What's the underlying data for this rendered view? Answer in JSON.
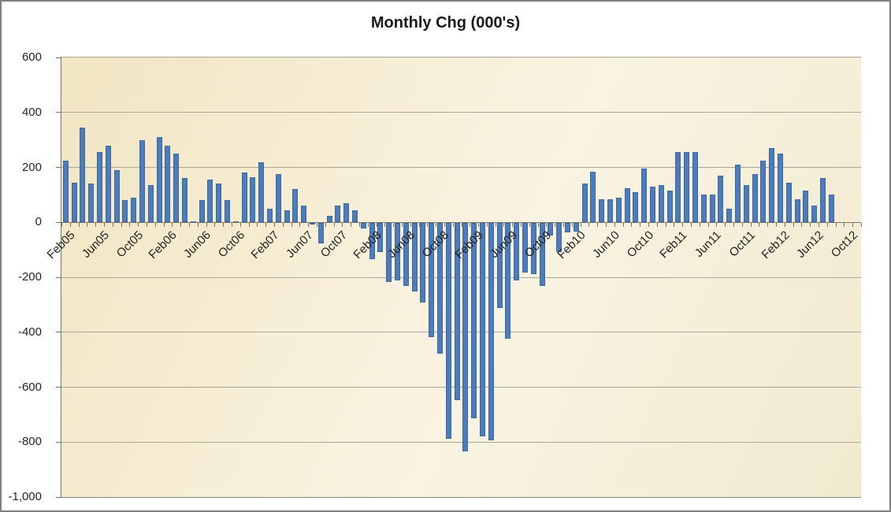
{
  "title": "Monthly Chg (000's)",
  "colors": {
    "bar_fill": "#4d7cb8",
    "bar_border": "#3a689f",
    "plot_bg_light": "#f9f3e2",
    "plot_bg_dark": "#f1e5c2",
    "gridline": "#aaa79a",
    "axis": "#76746a",
    "label_text": "#262626",
    "title_text": "#1a1a1a",
    "outer_border": "#7f7f7f"
  },
  "chart_data": {
    "type": "bar",
    "title": "Monthly Chg (000's)",
    "xlabel": "",
    "ylabel": "",
    "ylim": [
      -1000,
      600
    ],
    "ytick_interval": 200,
    "ytick_labels": [
      "600",
      "400",
      "200",
      "0",
      "-200",
      "-400",
      "-600",
      "-800",
      "-1,000"
    ],
    "xtick_label_every": 4,
    "grid": true,
    "legend": "none",
    "categories": [
      "Feb05",
      "Mar05",
      "Apr05",
      "May05",
      "Jun05",
      "Jul05",
      "Aug05",
      "Sep05",
      "Oct05",
      "Nov05",
      "Dec05",
      "Jan06",
      "Feb06",
      "Mar06",
      "Apr06",
      "May06",
      "Jun06",
      "Jul06",
      "Aug06",
      "Sep06",
      "Oct06",
      "Nov06",
      "Dec06",
      "Jan07",
      "Feb07",
      "Mar07",
      "Apr07",
      "May07",
      "Jun07",
      "Jul07",
      "Aug07",
      "Sep07",
      "Oct07",
      "Nov07",
      "Dec07",
      "Jan08",
      "Feb08",
      "Mar08",
      "Apr08",
      "May08",
      "Jun08",
      "Jul08",
      "Aug08",
      "Sep08",
      "Oct08",
      "Nov08",
      "Dec08",
      "Jan09",
      "Feb09",
      "Mar09",
      "Apr09",
      "May09",
      "Jun09",
      "Jul09",
      "Aug09",
      "Sep09",
      "Oct09",
      "Nov09",
      "Dec09",
      "Jan10",
      "Feb10",
      "Mar10",
      "Apr10",
      "May10",
      "Jun10",
      "Jul10",
      "Aug10",
      "Sep10",
      "Oct10",
      "Nov10",
      "Dec10",
      "Jan11",
      "Feb11",
      "Mar11",
      "Apr11",
      "May11",
      "Jun11",
      "Jul11",
      "Aug11",
      "Sep11",
      "Oct11",
      "Nov11",
      "Dec11",
      "Jan12",
      "Feb12",
      "Mar12",
      "Apr12",
      "May12",
      "Jun12",
      "Jul12",
      "Aug12",
      "Sep12",
      "Oct12",
      "Nov12"
    ],
    "values": [
      225,
      145,
      345,
      140,
      255,
      280,
      190,
      80,
      90,
      300,
      135,
      310,
      280,
      250,
      160,
      5,
      80,
      155,
      140,
      80,
      5,
      180,
      165,
      220,
      50,
      175,
      45,
      120,
      60,
      -5,
      -75,
      25,
      60,
      70,
      45,
      -20,
      -130,
      -105,
      -215,
      -210,
      -230,
      -250,
      -290,
      -415,
      -475,
      -785,
      -645,
      -830,
      -710,
      -775,
      -790,
      -310,
      -420,
      -210,
      -180,
      -185,
      -230,
      -45,
      -105,
      -35,
      -30,
      140,
      185,
      85,
      85,
      90,
      125,
      110,
      195,
      130,
      135,
      115,
      255,
      255,
      255,
      100,
      100,
      170,
      50,
      210,
      135,
      175,
      225,
      270,
      250,
      145,
      85,
      115,
      60,
      160,
      100,
      null,
      null,
      null
    ]
  }
}
